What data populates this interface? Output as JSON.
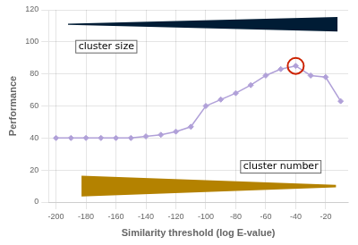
{
  "chart_data": {
    "type": "line",
    "x": [
      -200,
      -190,
      -180,
      -170,
      -160,
      -150,
      -140,
      -130,
      -120,
      -110,
      -100,
      -90,
      -80,
      -70,
      -60,
      -50,
      -40,
      -30,
      -20,
      -10
    ],
    "series": [
      {
        "color": "#b0a0d8",
        "marker": "diamond",
        "values": [
          40,
          40,
          40,
          40,
          40,
          40,
          41,
          42,
          44,
          47,
          60,
          64,
          68,
          73,
          79,
          83,
          85,
          79,
          78,
          63
        ]
      },
      {
        "type": "scatter",
        "color": "#cc2200",
        "marker": "circle",
        "values": [
          null,
          null,
          null,
          null,
          null,
          null,
          null,
          null,
          null,
          null,
          null,
          null,
          null,
          null,
          null,
          null,
          85,
          null,
          null,
          null
        ]
      }
    ],
    "xlabel": "Similarity threshold (log E-value)",
    "ylabel": "Performance",
    "xlim": [
      -205,
      -5
    ],
    "ylim": [
      0,
      120
    ],
    "xticks": [
      -200,
      -180,
      -160,
      -140,
      -120,
      -100,
      -80,
      -60,
      -40,
      -20
    ],
    "yticks": [
      0,
      20,
      40,
      60,
      80,
      100,
      120
    ],
    "grid": true,
    "annotations": [
      {
        "text": "cluster size",
        "x": -185,
        "y": 97
      },
      {
        "text": "cluster number",
        "x": -75,
        "y": 22
      }
    ],
    "wedges": [
      {
        "x": [
          -192,
          -12
        ],
        "center": 111,
        "half_height": [
          0.3,
          4.5
        ],
        "color": "#001c35"
      },
      {
        "x": [
          -183,
          -13
        ],
        "center": 10,
        "half_height": [
          6.5,
          0.8
        ],
        "color": "#b48200"
      }
    ]
  }
}
